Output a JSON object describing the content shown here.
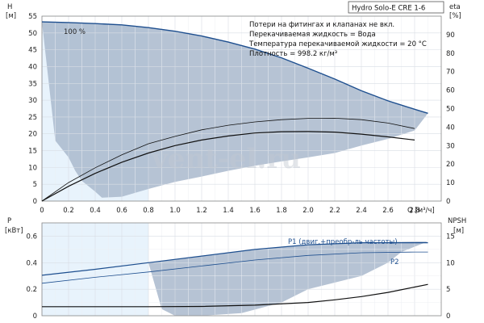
{
  "chart_data": [
    {
      "type": "line",
      "title": "Hydro Solo-E CRE 1-6",
      "left_axis": {
        "label": "H",
        "unit": "[м]",
        "lim": [
          0,
          55
        ],
        "ticks": [
          0,
          5,
          10,
          15,
          20,
          25,
          30,
          35,
          40,
          45,
          50,
          55
        ]
      },
      "right_axis": {
        "label": "eta",
        "unit": "[%]",
        "lim": [
          0,
          100
        ],
        "ticks": [
          0,
          10,
          20,
          30,
          40,
          50,
          60,
          70,
          80,
          90
        ]
      },
      "x_axis": {
        "label": "Q [м³/ч]",
        "lim": [
          0,
          3
        ],
        "ticks": [
          0,
          0.2,
          0.4,
          0.6,
          0.8,
          1.0,
          1.2,
          1.4,
          1.6,
          1.8,
          2.0,
          2.2,
          2.4,
          2.6,
          2.8
        ],
        "tick_labels": [
          "0",
          "0.2",
          "0.4",
          "0.6",
          "0.8",
          "1.0",
          "1.2",
          "1.4",
          "1.6",
          "1.8",
          "2.0",
          "2.2",
          "2.4",
          "2.6",
          "2.8"
        ]
      },
      "notes": [
        "Потери на фитингах и клапанах не вкл.",
        "Перекачиваемая жидкость = Вода",
        "Температура перекачиваемой жидкости = 20 °C",
        "Плотность = 998.2 кг/м³"
      ],
      "curve_label": "100 %",
      "series": [
        {
          "axis": "left",
          "x": [
            0,
            0.2,
            0.4,
            0.6,
            0.8,
            1.0,
            1.2,
            1.4,
            1.6,
            1.8,
            2.0,
            2.2,
            2.4,
            2.6,
            2.8,
            2.9
          ],
          "values": [
            53.3,
            53.1,
            52.8,
            52.4,
            51.6,
            50.5,
            49.1,
            47.3,
            45.2,
            42.6,
            39.5,
            36.3,
            32.8,
            29.8,
            27.3,
            26.1
          ]
        },
        {
          "axis": "right",
          "x": [
            0,
            0.2,
            0.4,
            0.6,
            0.8,
            1.0,
            1.2,
            1.4,
            1.6,
            1.8,
            2.0,
            2.2,
            2.4,
            2.6,
            2.8
          ],
          "values": [
            0,
            10,
            18,
            25,
            31,
            35,
            38.5,
            41,
            42.8,
            44,
            44.7,
            44.8,
            44,
            42.2,
            39.2
          ]
        },
        {
          "axis": "right",
          "x": [
            0,
            0.2,
            0.4,
            0.6,
            0.8,
            1.0,
            1.2,
            1.4,
            1.6,
            1.8,
            2.0,
            2.2,
            2.4,
            2.6,
            2.8
          ],
          "values": [
            0,
            8,
            15,
            21,
            26,
            30,
            33,
            35.2,
            36.8,
            37.5,
            37.6,
            37.3,
            36.2,
            34.7,
            33
          ]
        }
      ],
      "operating_area": {
        "color": "#a9b8cc",
        "upper": {
          "x": [
            0,
            0.2,
            0.4,
            0.6,
            0.8,
            0.9,
            1.0,
            1.2,
            1.4,
            1.6,
            1.8,
            2.0,
            2.2,
            2.4,
            2.6,
            2.8,
            2.9
          ],
          "values": [
            53.3,
            53.1,
            52.8,
            52.4,
            51.6,
            51.2,
            50.5,
            49.1,
            47.3,
            45.2,
            42.6,
            39.5,
            36.3,
            32.8,
            29.8,
            27.3,
            26.1
          ]
        },
        "lower": {
          "x": [
            2.9,
            2.8,
            2.6,
            2.4,
            2.2,
            2.0,
            1.8,
            1.6,
            1.4,
            1.2,
            1.0,
            0.8,
            0.6,
            0.45,
            0.4,
            0.3,
            0.25,
            0.2,
            0.1
          ],
          "values": [
            26.1,
            21,
            18.5,
            16.5,
            14.3,
            13,
            11.8,
            10.5,
            9,
            7.3,
            5.7,
            3.6,
            1.3,
            1,
            2.8,
            6,
            9,
            13,
            18
          ]
        }
      },
      "low_flow_area": {
        "color": "#e8f3fc",
        "x_max": 0.8
      }
    },
    {
      "type": "line",
      "left_axis": {
        "label": "P",
        "unit": "[кВт]",
        "lim": [
          0,
          0.7
        ],
        "ticks": [
          0,
          0.2,
          0.4,
          0.6
        ],
        "tick_labels": [
          "0",
          "0.2",
          "0.4",
          "0.6"
        ]
      },
      "right_axis": {
        "label": "NPSH",
        "unit": "[м]",
        "lim": [
          0,
          17.5
        ],
        "ticks": [
          0,
          5,
          10,
          15
        ]
      },
      "x_axis": {
        "lim": [
          0,
          3
        ]
      },
      "series": [
        {
          "name": "P1 (двиг.+преобр-ль частоты)",
          "axis": "left",
          "x": [
            0,
            0.4,
            0.8,
            1.2,
            1.6,
            2.0,
            2.4,
            2.8,
            2.9
          ],
          "values": [
            0.305,
            0.35,
            0.4,
            0.45,
            0.5,
            0.535,
            0.55,
            0.55,
            0.55
          ]
        },
        {
          "name": "P2",
          "axis": "left",
          "x": [
            0,
            0.4,
            0.8,
            1.2,
            1.6,
            2.0,
            2.4,
            2.8,
            2.9
          ],
          "values": [
            0.245,
            0.29,
            0.33,
            0.375,
            0.42,
            0.455,
            0.475,
            0.48,
            0.48
          ]
        },
        {
          "axis": "right",
          "x": [
            0,
            0.4,
            0.8,
            1.2,
            1.6,
            2.0,
            2.2,
            2.4,
            2.6,
            2.8,
            2.9
          ],
          "values": [
            1.7,
            1.7,
            1.7,
            1.75,
            2.0,
            2.5,
            3.0,
            3.6,
            4.4,
            5.4,
            5.9
          ]
        }
      ],
      "operating_area": {
        "color": "#a9b8cc",
        "upper": {
          "x": [
            0.8,
            1.0,
            1.2,
            1.4,
            1.6,
            1.8,
            2.0,
            2.2,
            2.4,
            2.6,
            2.8,
            2.9
          ],
          "values": [
            0.4,
            0.425,
            0.45,
            0.475,
            0.5,
            0.52,
            0.535,
            0.545,
            0.55,
            0.555,
            0.56,
            0.56
          ]
        },
        "lower": {
          "x": [
            2.9,
            2.7,
            2.6,
            2.4,
            2.0,
            1.8,
            1.5,
            1.2,
            1.0,
            0.9
          ],
          "values": [
            0.56,
            0.48,
            0.4,
            0.3,
            0.2,
            0.1,
            0.02,
            0,
            0,
            0.05
          ]
        }
      },
      "low_flow_area": {
        "color": "#e8f3fc",
        "x_max": 0.8
      }
    }
  ],
  "watermark": "vent-el.ru"
}
